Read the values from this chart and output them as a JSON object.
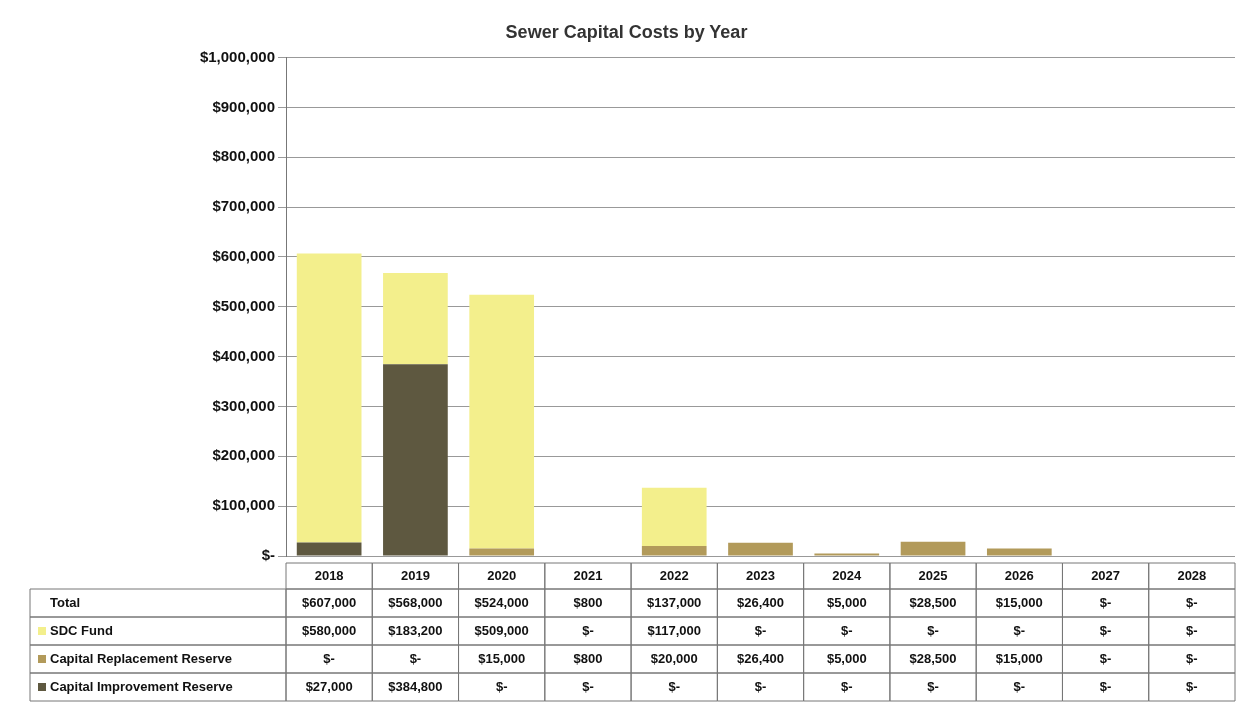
{
  "chart_data": {
    "type": "bar",
    "title": "Sewer Capital Costs by Year",
    "stacked": true,
    "categories": [
      "2018",
      "2019",
      "2020",
      "2021",
      "2022",
      "2023",
      "2024",
      "2025",
      "2026",
      "2027",
      "2028"
    ],
    "series": [
      {
        "name": "Capital Improvement Reserve",
        "color": "#5e5840",
        "values": [
          27000,
          384800,
          0,
          0,
          0,
          0,
          0,
          0,
          0,
          0,
          0
        ],
        "value_labels": [
          "$27,000",
          "$384,800",
          "$-",
          "$-",
          "$-",
          "$-",
          "$-",
          "$-",
          "$-",
          "$-",
          "$-"
        ]
      },
      {
        "name": "Capital Replacement Reserve",
        "color": "#b29a5a",
        "values": [
          0,
          0,
          15000,
          800,
          20000,
          26400,
          5000,
          28500,
          15000,
          0,
          0
        ],
        "value_labels": [
          "$-",
          "$-",
          "$15,000",
          "$800",
          "$20,000",
          "$26,400",
          "$5,000",
          "$28,500",
          "$15,000",
          "$-",
          "$-"
        ]
      },
      {
        "name": "SDC Fund",
        "color": "#f3ef8c",
        "values": [
          580000,
          183200,
          509000,
          0,
          117000,
          0,
          0,
          0,
          0,
          0,
          0
        ],
        "value_labels": [
          "$580,000",
          "$183,200",
          "$509,000",
          "$-",
          "$117,000",
          "$-",
          "$-",
          "$-",
          "$-",
          "$-",
          "$-"
        ]
      }
    ],
    "totals": [
      "$607,000",
      "$568,000",
      "$524,000",
      "$800",
      "$137,000",
      "$26,400",
      "$5,000",
      "$28,500",
      "$15,000",
      "$-",
      "$-"
    ],
    "annotations": [
      "Total"
    ],
    "legend": "bottom left",
    "ylim": [
      0,
      1000000
    ],
    "yticks": [
      {
        "value": 0,
        "label": "$-"
      },
      {
        "value": 100000,
        "label": "$100,000"
      },
      {
        "value": 200000,
        "label": "$200,000"
      },
      {
        "value": 300000,
        "label": "$300,000"
      },
      {
        "value": 400000,
        "label": "$400,000"
      },
      {
        "value": 500000,
        "label": "$500,000"
      },
      {
        "value": 600000,
        "label": "$600,000"
      },
      {
        "value": 700000,
        "label": "$700,000"
      },
      {
        "value": 800000,
        "label": "$800,000"
      },
      {
        "value": 900000,
        "label": "$900,000"
      },
      {
        "value": 1000000,
        "label": "$1,000,000"
      }
    ],
    "grid": "y"
  }
}
